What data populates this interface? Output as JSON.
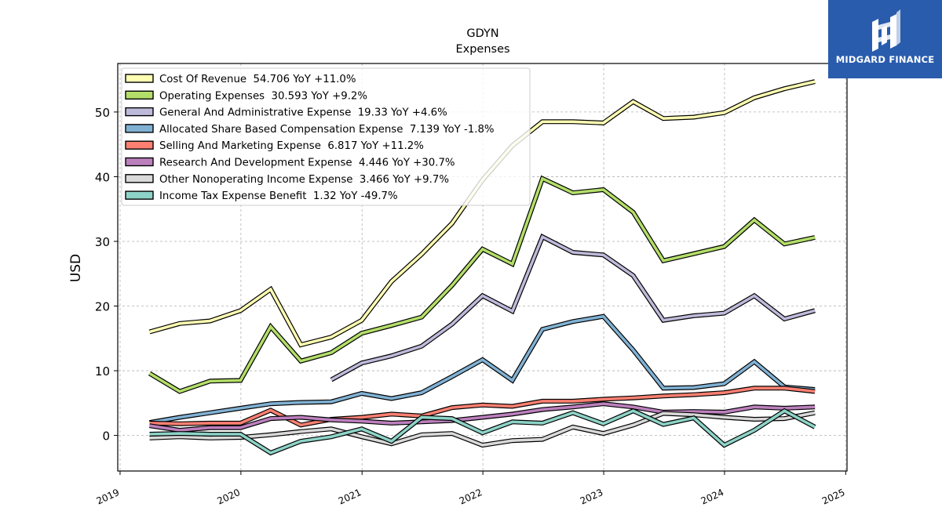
{
  "logo": {
    "name": "MIDGARD FINANCE",
    "icon": "midgard-logo-icon"
  },
  "chart_data": {
    "type": "line",
    "title": "GDYN",
    "subtitle": "Expenses",
    "ylabel": "USD",
    "xlabel": "",
    "xlim": [
      "2018-12-25",
      "2025-01-05"
    ],
    "ylim": [
      -5.5,
      57.5
    ],
    "yticks": [
      0,
      10,
      20,
      30,
      40,
      50
    ],
    "xticks": [
      "2019",
      "2020",
      "2021",
      "2022",
      "2023",
      "2024",
      "2025"
    ],
    "grid": true,
    "legend_position": "top-left",
    "x": [
      "2019-03-31",
      "2019-06-30",
      "2019-09-30",
      "2019-12-31",
      "2020-03-31",
      "2020-06-30",
      "2020-09-30",
      "2020-12-31",
      "2021-03-31",
      "2021-06-30",
      "2021-09-30",
      "2021-12-31",
      "2022-03-31",
      "2022-06-30",
      "2022-09-30",
      "2022-12-31",
      "2023-03-31",
      "2023-06-30",
      "2023-09-30",
      "2023-12-31",
      "2024-03-31",
      "2024-06-30",
      "2024-09-30"
    ],
    "series": [
      {
        "name": "Cost Of Revenue",
        "legend": "Cost Of Revenue  54.706 YoY +11.0%",
        "color": "#ffffb3",
        "values": [
          16.0,
          17.3,
          17.7,
          19.3,
          22.6,
          14.0,
          15.2,
          17.8,
          23.8,
          28.0,
          32.8,
          39.5,
          44.8,
          48.5,
          48.5,
          48.3,
          51.6,
          49.0,
          49.2,
          49.9,
          52.2,
          53.6,
          54.7
        ]
      },
      {
        "name": "Operating Expenses",
        "legend": "Operating Expenses  30.593 YoY +9.2%",
        "color": "#b3de69",
        "values": [
          9.6,
          6.8,
          8.4,
          8.5,
          16.8,
          11.5,
          12.8,
          15.8,
          17.0,
          18.3,
          23.2,
          28.8,
          26.5,
          39.7,
          37.5,
          38.0,
          34.5,
          27.0,
          28.1,
          29.2,
          33.3,
          29.6,
          30.6
        ]
      },
      {
        "name": "General And Administrative Expense",
        "legend": "General And Administrative Expense  19.33 YoY +4.6%",
        "color": "#bebada",
        "values": [
          null,
          null,
          null,
          null,
          null,
          null,
          8.6,
          11.2,
          12.3,
          13.8,
          17.2,
          21.6,
          19.2,
          30.7,
          28.3,
          27.9,
          24.7,
          17.8,
          18.5,
          18.9,
          21.6,
          18.0,
          19.3
        ]
      },
      {
        "name": "Allocated Share Based Compensation Expense",
        "legend": "Allocated Share Based Compensation Expense  7.139 YoY -1.8%",
        "color": "#80b1d3",
        "values": [
          2.0,
          2.8,
          3.5,
          4.2,
          4.9,
          5.1,
          5.2,
          6.5,
          5.7,
          6.6,
          9.1,
          11.7,
          8.5,
          16.4,
          17.6,
          18.4,
          13.2,
          7.3,
          7.4,
          8.0,
          11.4,
          7.5,
          7.1
        ]
      },
      {
        "name": "Selling And Marketing Expense",
        "legend": "Selling And Marketing Expense  6.817 YoY +11.2%",
        "color": "#fb8072",
        "values": [
          1.9,
          1.8,
          1.9,
          1.9,
          3.9,
          1.6,
          2.5,
          2.8,
          3.3,
          3.0,
          4.3,
          4.7,
          4.5,
          5.3,
          5.3,
          5.6,
          5.8,
          6.1,
          6.3,
          6.6,
          7.3,
          7.3,
          6.8
        ]
      },
      {
        "name": "Research And Development Expense",
        "legend": "Research And Development Expense  4.446 YoY +30.7%",
        "color": "#bc80bd",
        "values": [
          1.5,
          0.8,
          1.2,
          1.2,
          2.6,
          2.8,
          2.4,
          2.2,
          1.9,
          2.1,
          2.3,
          2.8,
          3.3,
          4.0,
          4.4,
          4.9,
          4.4,
          3.6,
          3.7,
          3.6,
          4.4,
          4.2,
          4.4
        ]
      },
      {
        "name": "Other Nonoperating Income Expense",
        "legend": "Other Nonoperating Income Expense  3.466 YoY +9.7%",
        "color": "#d9d9d9",
        "values": [
          -0.4,
          -0.2,
          -0.4,
          -0.3,
          0.1,
          0.6,
          1.0,
          -0.2,
          -1.3,
          0.1,
          0.3,
          -1.5,
          -0.8,
          -0.6,
          1.3,
          0.3,
          1.6,
          3.4,
          3.2,
          2.8,
          2.5,
          2.6,
          3.5
        ]
      },
      {
        "name": "Income Tax Expense Benefit",
        "legend": "Income Tax Expense Benefit  1.32 YoY -49.7%",
        "color": "#8dd3c7",
        "values": [
          0.2,
          0.3,
          0.2,
          0.2,
          -2.7,
          -0.9,
          -0.2,
          1.0,
          -0.9,
          2.8,
          2.6,
          0.4,
          2.1,
          1.9,
          3.5,
          1.8,
          3.8,
          1.7,
          2.7,
          -1.5,
          0.8,
          3.8,
          1.3
        ]
      }
    ]
  }
}
